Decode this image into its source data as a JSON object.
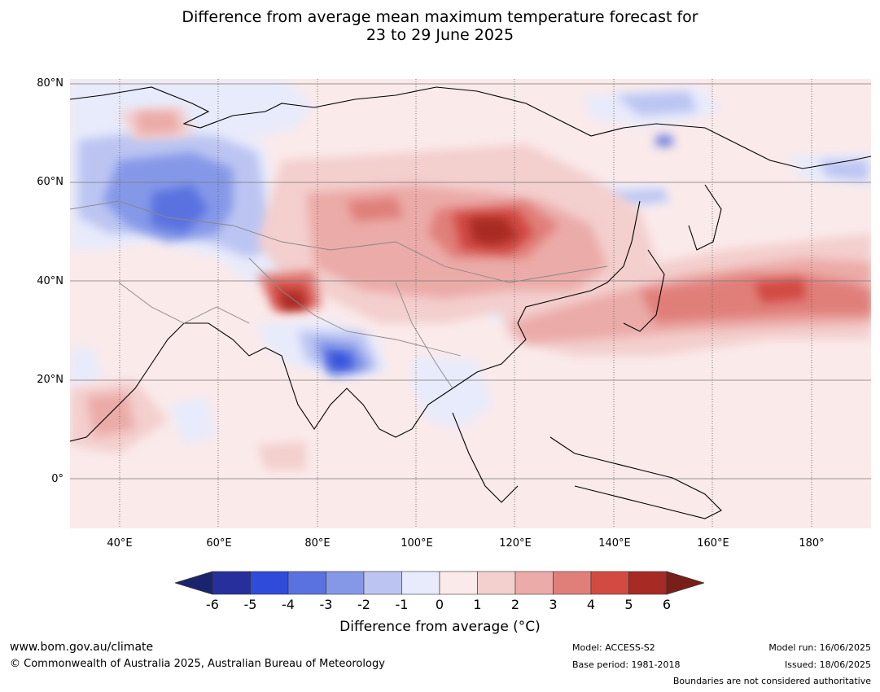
{
  "title": {
    "line1": "Difference from average mean maximum temperature forecast for",
    "line2": "23 to 29 June 2025"
  },
  "map": {
    "lat_labels": [
      "80°N",
      "60°N",
      "40°N",
      "20°N",
      "0°"
    ],
    "lon_labels": [
      "40°E",
      "60°E",
      "80°E",
      "100°E",
      "120°E",
      "140°E",
      "160°E",
      "180°"
    ]
  },
  "colorbar": {
    "ticks": [
      "-6",
      "-5",
      "-4",
      "-3",
      "-2",
      "-1",
      "0",
      "1",
      "2",
      "3",
      "4",
      "5",
      "6"
    ],
    "colors": [
      "#272f9d",
      "#2f4bd9",
      "#5a72e0",
      "#8598e8",
      "#bcc5f2",
      "#e8ebfb",
      "#fbeaea",
      "#f3cfce",
      "#ebaba8",
      "#e07f7a",
      "#d24a42",
      "#a82a24"
    ],
    "under_color": "#1a246e",
    "over_color": "#781f1a",
    "label": "Difference from average (°C)"
  },
  "footer": {
    "website": "www.bom.gov.au/climate",
    "copyright": "© Commonwealth of Australia 2025, Australian Bureau of Meteorology",
    "model": "Model: ACCESS-S2",
    "base_period": "Base period: 1981-2018",
    "model_run": "Model run: 16/06/2025",
    "issued": "Issued: 18/06/2025",
    "disclaimer": "Boundaries are not considered authoritative"
  }
}
